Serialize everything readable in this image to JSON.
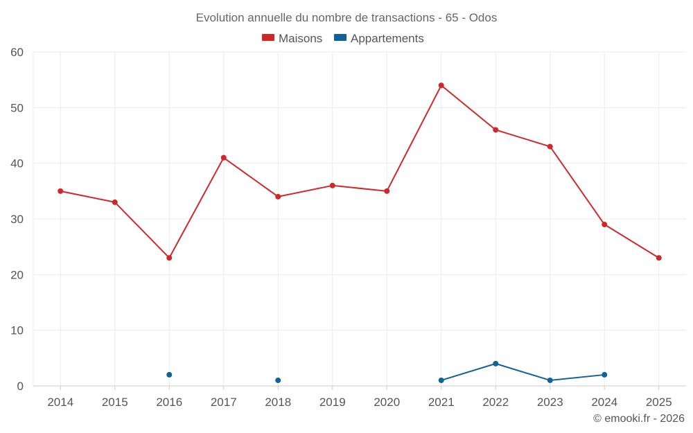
{
  "chart_data": {
    "type": "line",
    "title": "Evolution annuelle du nombre de transactions - 65 - Odos",
    "categories": [
      "2014",
      "2015",
      "2016",
      "2017",
      "2018",
      "2019",
      "2020",
      "2021",
      "2022",
      "2023",
      "2024",
      "2025"
    ],
    "series": [
      {
        "name": "Maisons",
        "color": "#d0282a",
        "values": [
          35,
          33,
          23,
          41,
          34,
          36,
          35,
          54,
          46,
          43,
          29,
          23
        ]
      },
      {
        "name": "Appartements",
        "color": "#0f6397",
        "values": [
          null,
          null,
          2,
          null,
          1,
          null,
          null,
          1,
          4,
          1,
          2,
          null
        ]
      }
    ],
    "ylim": [
      0,
      60
    ],
    "yticks": [
      0,
      10,
      20,
      30,
      40,
      50,
      60
    ],
    "grid": true,
    "legend": "top-center",
    "xlabel": "",
    "ylabel": ""
  },
  "credit": "© emooki.fr - 2026"
}
